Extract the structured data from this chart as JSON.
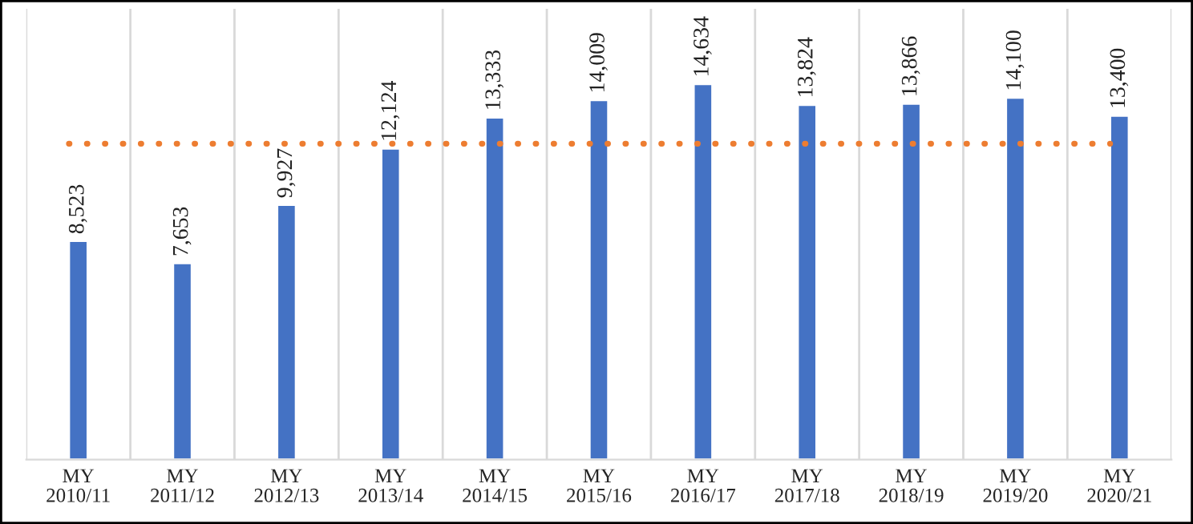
{
  "chart_data": {
    "type": "bar",
    "categories": [
      "MY\n2010/11",
      "MY\n2011/12",
      "MY\n2012/13",
      "MY\n2013/14",
      "MY\n2014/15",
      "MY\n2015/16",
      "MY\n2016/17",
      "MY\n2017/18",
      "MY\n2018/19",
      "MY\n2019/20",
      "MY\n2020/21"
    ],
    "values": [
      8523,
      7653,
      9927,
      12124,
      13333,
      14009,
      14634,
      13824,
      13866,
      14100,
      13400
    ],
    "color": "#4472c4",
    "data_labels": true,
    "value_labels": [
      "8,523",
      "7,653",
      "9,927",
      "12,124",
      "13,333",
      "14,009",
      "14,634",
      "13,824",
      "13,866",
      "14,100",
      "13,400"
    ],
    "ref_lines": [
      {
        "axis": "y",
        "value": 12308,
        "color": "#ed7d31",
        "line_style": "dotted"
      }
    ],
    "grid": "x",
    "tick_labels": "x"
  }
}
